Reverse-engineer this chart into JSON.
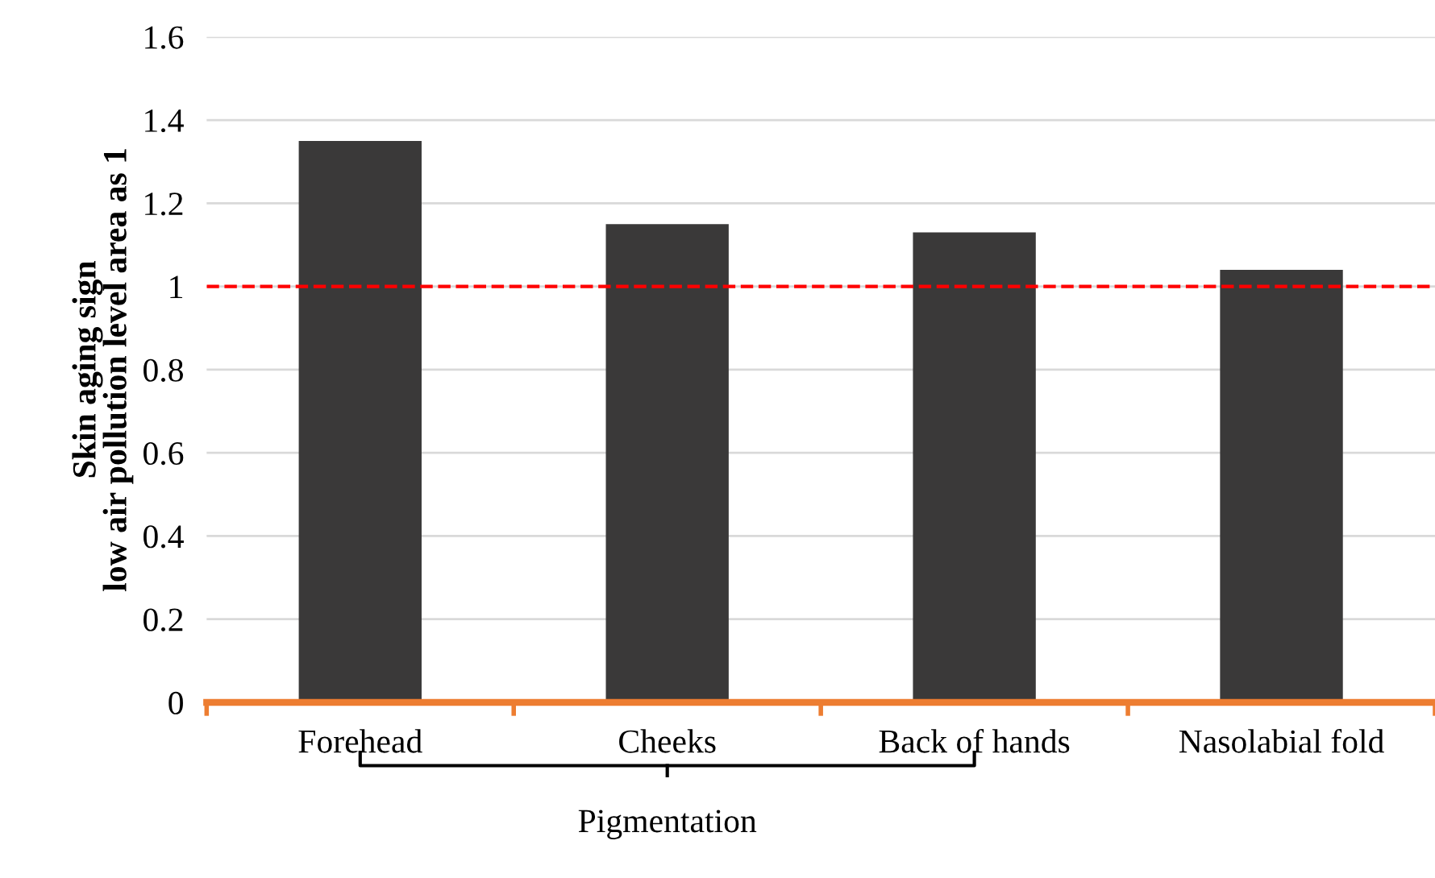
{
  "chart_data": {
    "type": "bar",
    "ylabel": "Skin aging sign\nlow air pollution level area as 1",
    "categories": [
      "Forehead",
      "Cheeks",
      "Back of hands",
      "Nasolabial fold"
    ],
    "values": [
      1.35,
      1.15,
      1.13,
      1.04
    ],
    "color": "#3a3939",
    "ylim": [
      0,
      1.6
    ],
    "yticks": [
      0,
      {
        "value": 0.2,
        "label": "0.2"
      },
      {
        "value": 0.4,
        "label": "0.4"
      },
      {
        "value": 0.6,
        "label": "0.6"
      },
      {
        "value": 0.8,
        "label": "0.8"
      },
      1,
      {
        "value": 1.2,
        "label": "1.2"
      },
      {
        "value": 1.4,
        "label": "1.4"
      },
      {
        "value": 1.6,
        "label": "1.6"
      }
    ],
    "grid": "y",
    "ref_lines": [
      {
        "axis": "y",
        "value": 1,
        "color": "#ff0000",
        "line_style": "dashed"
      }
    ],
    "annotations": [
      "Pigmentation"
    ]
  }
}
